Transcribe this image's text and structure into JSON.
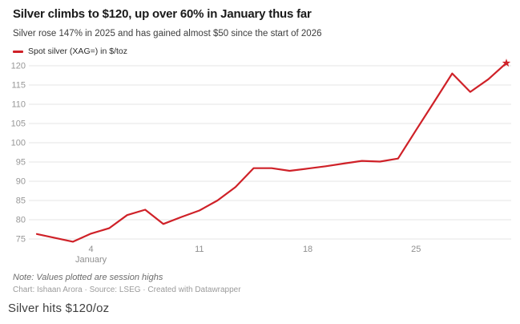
{
  "header": {
    "title": "Silver climbs to $120, up over 60% in January thus far",
    "subtitle": "Silver rose 147% in 2025 and has gained almost $50 since the start of 2026"
  },
  "legend": {
    "label": "Spot silver (XAG=) in $/toz"
  },
  "notes": {
    "note": "Note: Values plotted are session highs",
    "credit": "Chart: Ishaan Arora · Source: LSEG · Created with Datawrapper"
  },
  "footer": {
    "caption": "Silver hits $120/oz"
  },
  "colors": {
    "line": "#cf2128",
    "grid": "#e4e4e4",
    "axis_text": "#979797",
    "tick_text": "#8f8f8f"
  },
  "chart_data": {
    "type": "line",
    "title": "Silver climbs to $120, up over 60% in January thus far",
    "ylabel": "Spot silver (XAG=) in $/toz",
    "xlabel": "January",
    "ylim": [
      75,
      120
    ],
    "y_ticks": [
      120,
      115,
      110,
      105,
      100,
      95,
      90,
      85,
      80,
      75
    ],
    "grid": true,
    "legend_position": "top-left",
    "end_marker": "star",
    "x_month_label": "January",
    "x_slots": [
      "Dec 31",
      "Jan 1",
      "Jan 2",
      "Jan 4",
      "Jan 5",
      "Jan 6",
      "Jan 7",
      "Jan 8",
      "Jan 9",
      "Jan 11",
      "Jan 12",
      "Jan 13",
      "Jan 14",
      "Jan 15",
      "Jan 16",
      "Jan 18",
      "Jan 19",
      "Jan 20",
      "Jan 21",
      "Jan 22",
      "Jan 23",
      "Jan 25",
      "Jan 26",
      "Jan 27",
      "Jan 28",
      "Jan 29",
      "Jan 30"
    ],
    "x_ticks": [
      {
        "date": "Jan 4",
        "label": "4"
      },
      {
        "date": "Jan 11",
        "label": "11"
      },
      {
        "date": "Jan 18",
        "label": "18"
      },
      {
        "date": "Jan 25",
        "label": "25"
      }
    ],
    "series": [
      {
        "name": "Spot silver (XAG=)",
        "unit": "$/toz",
        "points": [
          {
            "date": "Dec 31",
            "value": 76.3
          },
          {
            "date": "Jan 2",
            "value": 74.3
          },
          {
            "date": "Jan 4",
            "value": 76.4
          },
          {
            "date": "Jan 5",
            "value": 77.8
          },
          {
            "date": "Jan 6",
            "value": 81.2
          },
          {
            "date": "Jan 7",
            "value": 82.6
          },
          {
            "date": "Jan 8",
            "value": 78.9
          },
          {
            "date": "Jan 9",
            "value": 80.7
          },
          {
            "date": "Jan 11",
            "value": 82.4
          },
          {
            "date": "Jan 12",
            "value": 85.0
          },
          {
            "date": "Jan 13",
            "value": 88.5
          },
          {
            "date": "Jan 14",
            "value": 93.4
          },
          {
            "date": "Jan 15",
            "value": 93.4
          },
          {
            "date": "Jan 16",
            "value": 92.7
          },
          {
            "date": "Jan 18",
            "value": 93.3
          },
          {
            "date": "Jan 19",
            "value": 93.9
          },
          {
            "date": "Jan 20",
            "value": 94.6
          },
          {
            "date": "Jan 21",
            "value": 95.3
          },
          {
            "date": "Jan 22",
            "value": 95.1
          },
          {
            "date": "Jan 23",
            "value": 95.9
          },
          {
            "date": "Jan 25",
            "value": 103.3
          },
          {
            "date": "Jan 26",
            "value": 110.6
          },
          {
            "date": "Jan 27",
            "value": 118.0
          },
          {
            "date": "Jan 28",
            "value": 113.2
          },
          {
            "date": "Jan 29",
            "value": 116.5
          },
          {
            "date": "Jan 30",
            "value": 120.7
          }
        ]
      }
    ]
  }
}
